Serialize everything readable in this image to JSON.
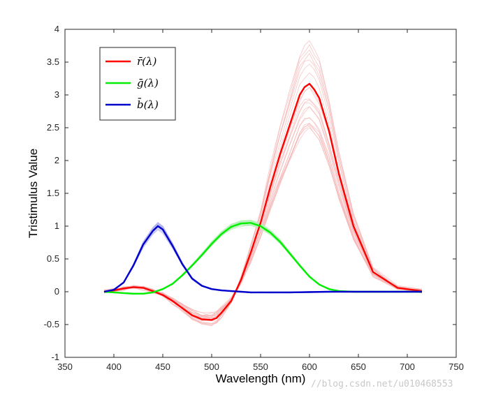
{
  "chart_data": {
    "type": "line",
    "xlabel": "Wavelength (nm)",
    "ylabel": "Tristimulus Value",
    "xlim": [
      350,
      750
    ],
    "ylim": [
      -1,
      4
    ],
    "xticks": [
      "350",
      "400",
      "450",
      "500",
      "550",
      "600",
      "650",
      "700",
      "750"
    ],
    "yticks": [
      "-1",
      "-0.5",
      "0",
      "0.5",
      "1",
      "1.5",
      "2",
      "2.5",
      "3",
      "3.5",
      "4"
    ],
    "grid": false,
    "legend_position": "top-left",
    "series": [
      {
        "name": "r̄(λ)",
        "color": "#ff0000",
        "band_color": "#f4b4b4",
        "x": [
          390,
          400,
          410,
          420,
          430,
          440,
          450,
          460,
          470,
          480,
          490,
          500,
          505,
          510,
          520,
          530,
          540,
          550,
          560,
          570,
          580,
          590,
          595,
          600,
          605,
          610,
          620,
          630,
          645,
          665,
          690,
          715
        ],
        "y": [
          0.0,
          0.02,
          0.05,
          0.07,
          0.06,
          0.01,
          -0.05,
          -0.14,
          -0.25,
          -0.36,
          -0.42,
          -0.43,
          -0.4,
          -0.32,
          -0.14,
          0.18,
          0.6,
          1.05,
          1.6,
          2.1,
          2.55,
          3.0,
          3.12,
          3.17,
          3.08,
          2.95,
          2.45,
          1.8,
          1.0,
          0.3,
          0.06,
          0.01
        ],
        "band_spread": 0.22
      },
      {
        "name": "ḡ(λ)",
        "color": "#00ee00",
        "band_color": "#b6f0b6",
        "x": [
          390,
          400,
          410,
          420,
          430,
          440,
          450,
          460,
          470,
          480,
          490,
          500,
          510,
          520,
          530,
          540,
          550,
          560,
          570,
          580,
          590,
          600,
          610,
          620,
          630,
          645,
          665,
          690,
          715
        ],
        "y": [
          0.0,
          -0.01,
          -0.02,
          -0.03,
          -0.03,
          -0.01,
          0.04,
          0.12,
          0.25,
          0.4,
          0.56,
          0.73,
          0.88,
          0.99,
          1.04,
          1.05,
          1.0,
          0.9,
          0.76,
          0.58,
          0.4,
          0.23,
          0.11,
          0.04,
          0.01,
          0.0,
          0.0,
          0.0,
          0.0
        ],
        "band_spread": 0.04
      },
      {
        "name": "b̄(λ)",
        "color": "#0000cc",
        "band_color": "#b4b4f0",
        "x": [
          390,
          400,
          410,
          420,
          430,
          440,
          445,
          450,
          460,
          470,
          480,
          490,
          500,
          510,
          520,
          530,
          540,
          550,
          560,
          580,
          600,
          620,
          640,
          660,
          690,
          715
        ],
        "y": [
          0.0,
          0.03,
          0.14,
          0.4,
          0.72,
          0.93,
          1.0,
          0.95,
          0.7,
          0.42,
          0.2,
          0.09,
          0.04,
          0.02,
          0.01,
          0.0,
          -0.01,
          -0.01,
          -0.01,
          -0.01,
          -0.005,
          0.0,
          0.0,
          0.0,
          0.0,
          0.0
        ],
        "band_spread": 0.06
      }
    ]
  },
  "watermark": "//blog.csdn.net/u010468553"
}
